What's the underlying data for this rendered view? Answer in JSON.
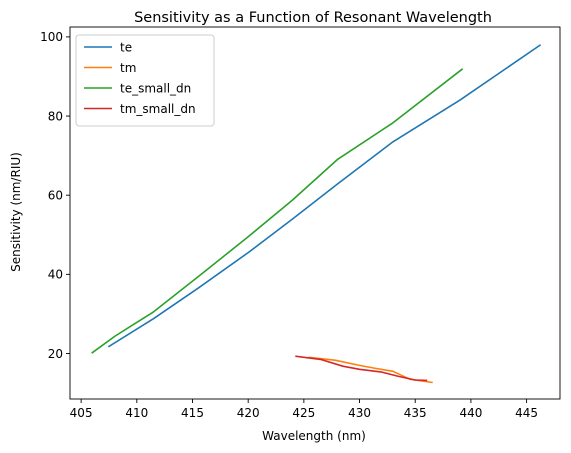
{
  "chart_data": {
    "type": "line",
    "title": "Sensitivity as a Function of Resonant Wavelength",
    "xlabel": "Wavelength (nm)",
    "ylabel": "Sensitivity (nm/RIU)",
    "xlim": [
      404.0,
      448.0
    ],
    "ylim": [
      8.5,
      102.5
    ],
    "xticks": [
      405,
      410,
      415,
      420,
      425,
      430,
      435,
      440,
      445
    ],
    "yticks": [
      20,
      40,
      60,
      80,
      100
    ],
    "grid": false,
    "legend_position": "top-left",
    "series": [
      {
        "name": "te",
        "color": "#1f77b4",
        "points": [
          [
            407.5,
            21.8
          ],
          [
            411.5,
            28.8
          ],
          [
            415.5,
            36.5
          ],
          [
            420.0,
            45.5
          ],
          [
            424.0,
            54.0
          ],
          [
            428.0,
            62.8
          ],
          [
            433.0,
            73.5
          ],
          [
            439.0,
            84.0
          ],
          [
            446.2,
            97.9
          ]
        ]
      },
      {
        "name": "tm",
        "color": "#ff7f0e",
        "points": [
          [
            425.5,
            19.0
          ],
          [
            427.8,
            18.3
          ],
          [
            430.0,
            17.0
          ],
          [
            431.5,
            16.2
          ],
          [
            433.0,
            15.5
          ],
          [
            434.5,
            13.5
          ],
          [
            436.5,
            12.7
          ]
        ]
      },
      {
        "name": "te_small_dn",
        "color": "#2ca02c",
        "points": [
          [
            406.0,
            20.2
          ],
          [
            408.0,
            24.3
          ],
          [
            411.5,
            30.5
          ],
          [
            416.0,
            40.5
          ],
          [
            420.0,
            49.5
          ],
          [
            424.0,
            58.8
          ],
          [
            428.0,
            69.0
          ],
          [
            433.0,
            78.3
          ],
          [
            439.2,
            91.8
          ]
        ]
      },
      {
        "name": "tm_small_dn",
        "color": "#d62728",
        "points": [
          [
            424.3,
            19.3
          ],
          [
            426.5,
            18.5
          ],
          [
            428.5,
            16.8
          ],
          [
            430.0,
            16.0
          ],
          [
            432.0,
            15.3
          ],
          [
            433.5,
            14.2
          ],
          [
            435.0,
            13.3
          ],
          [
            436.0,
            13.2
          ]
        ]
      }
    ]
  }
}
